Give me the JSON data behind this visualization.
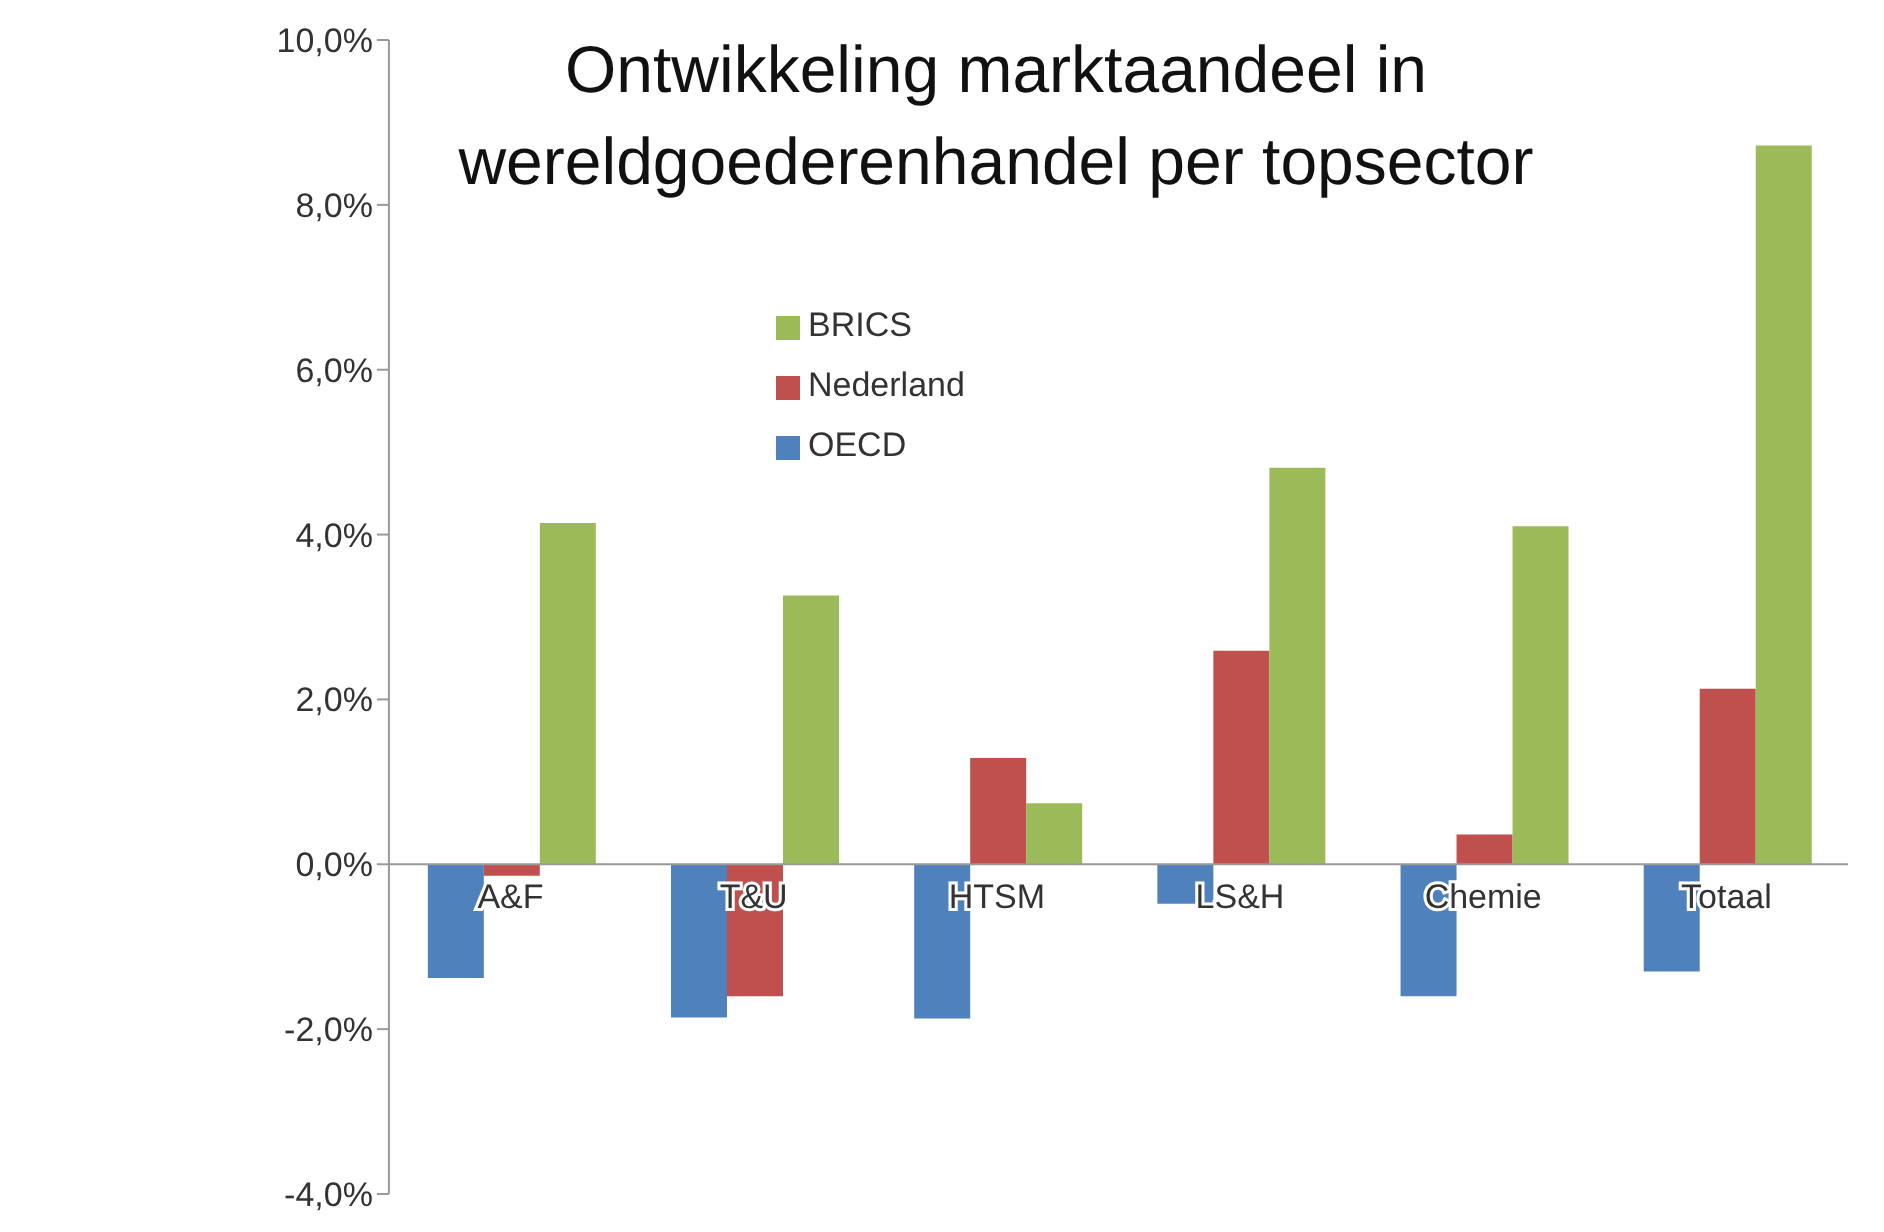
{
  "chart_data": {
    "type": "bar",
    "title": "Ontwikkeling marktaandeel in wereldgoederenhandel per topsector",
    "categories": [
      "A&F",
      "T&U",
      "HTSM",
      "LS&H",
      "Chemie",
      "Totaal"
    ],
    "series": [
      {
        "name": "OECD",
        "color": "#4f81bd",
        "values": [
          -1.38,
          -1.86,
          -1.87,
          -0.48,
          -1.6,
          -1.3
        ]
      },
      {
        "name": "Nederland",
        "color": "#c0504d",
        "values": [
          -0.14,
          -1.6,
          1.29,
          2.59,
          0.36,
          2.13
        ]
      },
      {
        "name": "BRICS",
        "color": "#9bbb59",
        "values": [
          4.14,
          3.26,
          0.74,
          4.81,
          4.1,
          8.72
        ]
      }
    ],
    "ylim": [
      -4,
      10
    ],
    "yticks": [
      {
        "value": -4,
        "label": "-4,0%"
      },
      {
        "value": -2,
        "label": "-2,0%"
      },
      {
        "value": 0,
        "label": "0,0%"
      },
      {
        "value": 2,
        "label": "2,0%"
      },
      {
        "value": 4,
        "label": "4,0%"
      },
      {
        "value": 6,
        "label": "6,0%"
      },
      {
        "value": 8,
        "label": "8,0%"
      },
      {
        "value": 10,
        "label": "10,0%"
      }
    ],
    "legend": "top"
  }
}
